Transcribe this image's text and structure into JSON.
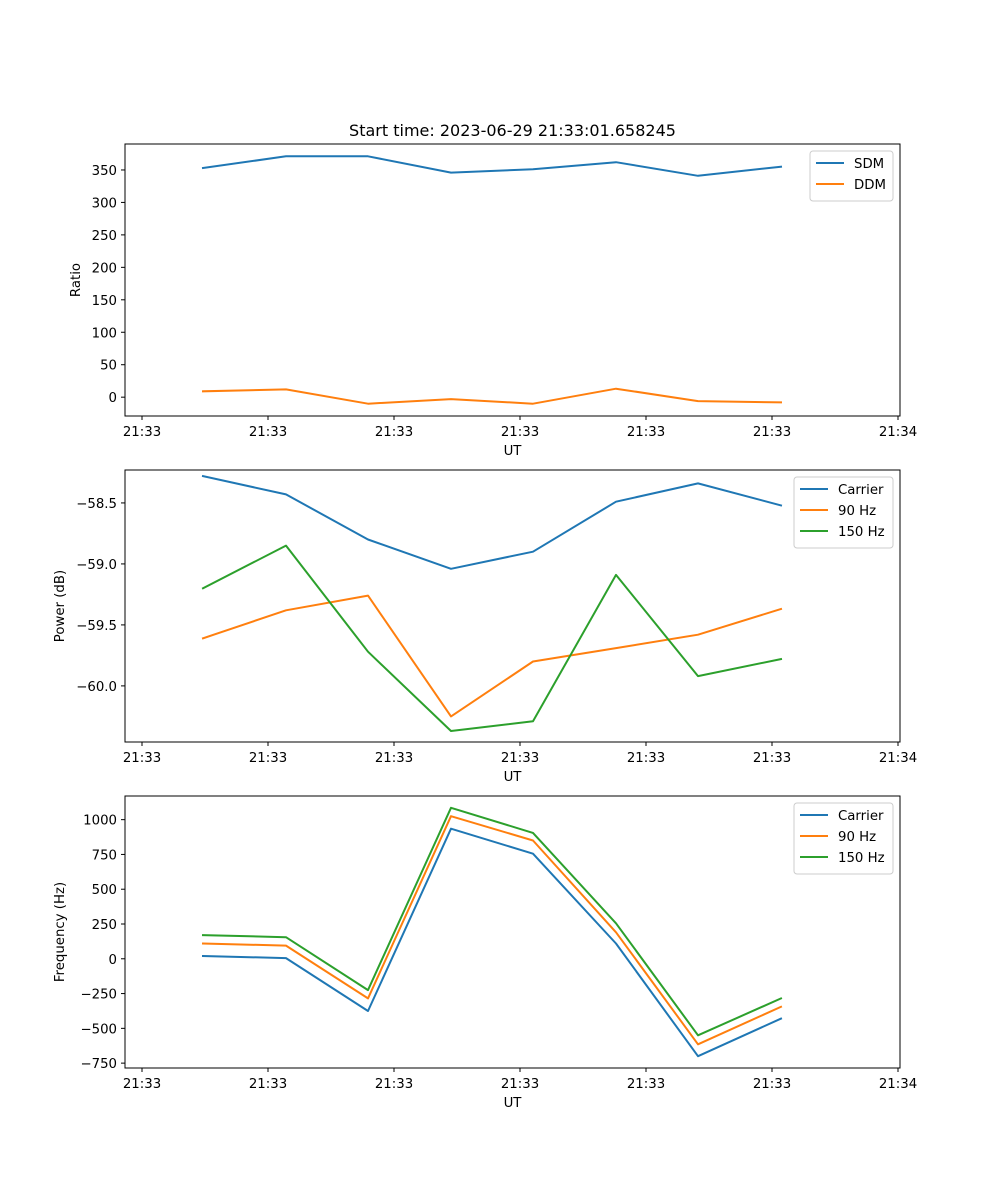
{
  "figure": {
    "title": "Start time: 2023-06-29 21:33:01.658245"
  },
  "colors": {
    "blue": "#1f77b4",
    "orange": "#ff7f0e",
    "green": "#2ca02c"
  },
  "chart_data": [
    {
      "type": "line",
      "title": "Start time: 2023-06-29 21:33:01.658245",
      "xlabel": "UT",
      "ylabel": "Ratio",
      "x_tick_labels": [
        "21:33",
        "21:33",
        "21:33",
        "21:33",
        "21:33",
        "21:33",
        "21:34"
      ],
      "y_ticks": [
        0,
        50,
        100,
        150,
        200,
        250,
        300,
        350
      ],
      "y_tick_labels": [
        "0",
        "50",
        "100",
        "150",
        "200",
        "250",
        "300",
        "350"
      ],
      "ylim": [
        -29,
        390
      ],
      "grid": false,
      "legend_position": "top-right",
      "series": [
        {
          "name": "SDM",
          "color": "#1f77b4",
          "values": [
            353,
            371,
            371,
            346,
            351,
            362,
            341,
            355
          ]
        },
        {
          "name": "DDM",
          "color": "#ff7f0e",
          "values": [
            9,
            12,
            -10,
            -3,
            -10,
            13,
            -6,
            -8
          ]
        }
      ]
    },
    {
      "type": "line",
      "xlabel": "UT",
      "ylabel": "Power (dB)",
      "x_tick_labels": [
        "21:33",
        "21:33",
        "21:33",
        "21:33",
        "21:33",
        "21:33",
        "21:34"
      ],
      "y_ticks": [
        -60.0,
        -59.5,
        -59.0,
        -58.5
      ],
      "y_tick_labels": [
        "−60.0",
        "−59.5",
        "−59.0",
        "−58.5"
      ],
      "ylim": [
        -60.46,
        -58.23
      ],
      "grid": false,
      "legend_position": "top-right",
      "series": [
        {
          "name": "Carrier",
          "color": "#1f77b4",
          "values": [
            -58.28,
            -58.43,
            -58.8,
            -59.04,
            -58.9,
            -58.49,
            -58.34,
            -58.52
          ]
        },
        {
          "name": "90 Hz",
          "color": "#ff7f0e",
          "values": [
            -59.61,
            -59.38,
            -59.26,
            -60.25,
            -59.8,
            -59.69,
            -59.58,
            -59.37
          ]
        },
        {
          "name": "150 Hz",
          "color": "#2ca02c",
          "values": [
            -59.2,
            -58.85,
            -59.72,
            -60.37,
            -60.29,
            -59.09,
            -59.92,
            -59.78
          ]
        }
      ]
    },
    {
      "type": "line",
      "xlabel": "UT",
      "ylabel": "Frequency (Hz)",
      "x_tick_labels": [
        "21:33",
        "21:33",
        "21:33",
        "21:33",
        "21:33",
        "21:33",
        "21:34"
      ],
      "y_ticks": [
        -750,
        -500,
        -250,
        0,
        250,
        500,
        750,
        1000
      ],
      "y_tick_labels": [
        "−750",
        "−500",
        "−250",
        "0",
        "250",
        "500",
        "750",
        "1000"
      ],
      "ylim": [
        -785,
        1170
      ],
      "grid": false,
      "legend_position": "top-right",
      "series": [
        {
          "name": "Carrier",
          "color": "#1f77b4",
          "values": [
            20,
            5,
            -375,
            935,
            755,
            110,
            -700,
            -430
          ]
        },
        {
          "name": "90 Hz",
          "color": "#ff7f0e",
          "values": [
            110,
            95,
            -285,
            1025,
            850,
            190,
            -615,
            -345
          ]
        },
        {
          "name": "150 Hz",
          "color": "#2ca02c",
          "values": [
            170,
            155,
            -225,
            1085,
            905,
            255,
            -550,
            -285
          ]
        }
      ]
    }
  ]
}
